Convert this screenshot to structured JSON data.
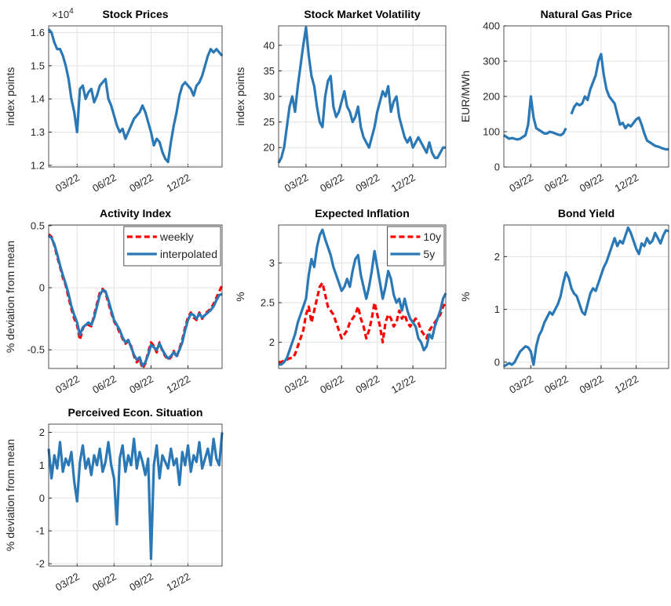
{
  "chart_data": [
    {
      "type": "line",
      "title": "Stock Prices",
      "ylabel": "index points",
      "y_multiplier": {
        "base": "×10",
        "exponent": "4"
      },
      "categories": [
        null,
        null,
        null,
        null,
        null,
        null,
        null,
        null,
        null,
        null,
        "03/22",
        null,
        null,
        null,
        null,
        null,
        null,
        null,
        null,
        null,
        null,
        null,
        null,
        "06/22",
        null,
        null,
        null,
        null,
        null,
        null,
        null,
        null,
        null,
        null,
        null,
        null,
        "09/22",
        null,
        null,
        null,
        null,
        null,
        null,
        null,
        null,
        null,
        null,
        null,
        null,
        "12/22",
        null,
        null,
        null,
        null,
        null,
        null,
        null,
        null,
        null,
        null,
        null,
        null
      ],
      "series": [
        {
          "color": "#2a78b5",
          "values": [
            1.61,
            1.6,
            1.57,
            1.55,
            1.55,
            1.53,
            1.5,
            1.46,
            1.4,
            1.36,
            1.3,
            1.43,
            1.44,
            1.4,
            1.42,
            1.43,
            1.39,
            1.41,
            1.44,
            1.45,
            1.46,
            1.4,
            1.38,
            1.35,
            1.32,
            1.3,
            1.31,
            1.28,
            1.3,
            1.32,
            1.34,
            1.35,
            1.36,
            1.38,
            1.36,
            1.33,
            1.3,
            1.26,
            1.28,
            1.27,
            1.24,
            1.22,
            1.21,
            1.27,
            1.32,
            1.36,
            1.41,
            1.44,
            1.45,
            1.44,
            1.43,
            1.41,
            1.44,
            1.45,
            1.47,
            1.5,
            1.53,
            1.55,
            1.54,
            1.55,
            1.54,
            1.53
          ]
        }
      ],
      "ylim": [
        1.195,
        1.62
      ],
      "yticks": [
        1.2,
        1.3,
        1.4,
        1.5,
        1.6
      ],
      "grid": true
    },
    {
      "type": "line",
      "title": "Stock Market Volatility",
      "ylabel": "index points",
      "categories": [
        null,
        null,
        null,
        null,
        null,
        null,
        null,
        null,
        null,
        null,
        "03/22",
        null,
        null,
        null,
        null,
        null,
        null,
        null,
        null,
        null,
        null,
        null,
        null,
        "06/22",
        null,
        null,
        null,
        null,
        null,
        null,
        null,
        null,
        null,
        null,
        null,
        null,
        "09/22",
        null,
        null,
        null,
        null,
        null,
        null,
        null,
        null,
        null,
        null,
        null,
        null,
        "12/22",
        null,
        null,
        null,
        null,
        null,
        null,
        null,
        null,
        null,
        null,
        null,
        null
      ],
      "series": [
        {
          "color": "#2a78b5",
          "values": [
            17,
            18,
            20,
            24,
            28,
            30,
            27,
            32,
            36,
            40,
            43.5,
            38,
            34,
            32,
            28,
            25,
            24,
            30,
            33,
            34,
            28,
            26,
            27,
            29,
            31,
            28,
            27,
            25,
            26,
            28,
            24,
            22,
            21,
            20,
            22,
            24,
            27,
            29,
            31,
            30,
            32,
            27,
            29,
            30,
            26,
            24,
            22,
            21,
            22,
            20,
            21,
            22,
            21,
            20,
            19,
            21,
            19,
            18,
            18,
            19,
            20,
            20
          ]
        }
      ],
      "ylim": [
        16.2,
        43.8
      ],
      "yticks": [
        20,
        25,
        30,
        35,
        40
      ],
      "grid": true
    },
    {
      "type": "line",
      "title": "Natural Gas Price",
      "ylabel": "EUR/MWh",
      "categories": [
        null,
        null,
        null,
        null,
        null,
        null,
        null,
        null,
        null,
        null,
        "03/22",
        null,
        null,
        null,
        null,
        null,
        null,
        null,
        null,
        null,
        null,
        null,
        null,
        "06/22",
        null,
        null,
        null,
        null,
        null,
        null,
        null,
        null,
        null,
        null,
        null,
        null,
        "09/22",
        null,
        null,
        null,
        null,
        null,
        null,
        null,
        null,
        null,
        null,
        null,
        null,
        "12/22",
        null,
        null,
        null,
        null,
        null,
        null,
        null,
        null,
        null,
        null,
        null,
        null
      ],
      "series": [
        {
          "color": "#2a78b5",
          "values": [
            90,
            85,
            80,
            82,
            80,
            78,
            80,
            85,
            90,
            120,
            200,
            140,
            110,
            105,
            100,
            95,
            95,
            100,
            98,
            95,
            92,
            90,
            95,
            110,
            null,
            150,
            170,
            180,
            175,
            180,
            200,
            190,
            220,
            240,
            260,
            300,
            320,
            260,
            220,
            200,
            190,
            180,
            150,
            120,
            125,
            110,
            120,
            115,
            125,
            135,
            140,
            120,
            95,
            75,
            70,
            65,
            60,
            58,
            55,
            52,
            50,
            50
          ]
        }
      ],
      "ylim": [
        0,
        400
      ],
      "yticks": [
        0,
        100,
        200,
        300,
        400
      ],
      "grid": true
    },
    {
      "type": "line",
      "title": "Activity Index",
      "ylabel": "% deviation from mean",
      "legend": "northeast",
      "categories": [
        null,
        null,
        null,
        null,
        null,
        null,
        null,
        null,
        null,
        null,
        "03/22",
        null,
        null,
        null,
        null,
        null,
        null,
        null,
        null,
        null,
        null,
        null,
        null,
        "06/22",
        null,
        null,
        null,
        null,
        null,
        null,
        null,
        null,
        null,
        null,
        null,
        null,
        "09/22",
        null,
        null,
        null,
        null,
        null,
        null,
        null,
        null,
        null,
        null,
        null,
        null,
        "12/22",
        null,
        null,
        null,
        null,
        null,
        null,
        null,
        null,
        null,
        null,
        null,
        null
      ],
      "series": [
        {
          "name": "weekly",
          "color": "#ff0000",
          "linestyle": "dashed",
          "values": [
            0.43,
            0.41,
            0.34,
            0.25,
            0.17,
            0.08,
            0.02,
            -0.08,
            -0.17,
            -0.25,
            -0.3,
            -0.42,
            -0.33,
            -0.29,
            -0.3,
            -0.31,
            -0.22,
            -0.13,
            -0.04,
            -0.01,
            -0.04,
            -0.12,
            -0.2,
            -0.27,
            -0.31,
            -0.36,
            -0.41,
            -0.45,
            -0.43,
            -0.47,
            -0.55,
            -0.6,
            -0.57,
            -0.65,
            -0.61,
            -0.52,
            -0.44,
            -0.47,
            -0.52,
            -0.44,
            -0.51,
            -0.55,
            -0.58,
            -0.56,
            -0.51,
            -0.56,
            -0.49,
            -0.42,
            -0.32,
            -0.24,
            -0.2,
            -0.24,
            -0.26,
            -0.2,
            -0.25,
            -0.21,
            -0.19,
            -0.17,
            -0.13,
            -0.08,
            -0.03,
            0.02
          ]
        },
        {
          "name": "interpolated",
          "color": "#2a78b5",
          "linestyle": "solid",
          "values": [
            0.42,
            0.4,
            0.35,
            0.27,
            0.18,
            0.1,
            0.03,
            -0.05,
            -0.15,
            -0.22,
            -0.28,
            -0.38,
            -0.32,
            -0.3,
            -0.28,
            -0.3,
            -0.24,
            -0.15,
            -0.06,
            -0.02,
            -0.03,
            -0.1,
            -0.18,
            -0.26,
            -0.3,
            -0.34,
            -0.4,
            -0.44,
            -0.42,
            -0.48,
            -0.54,
            -0.58,
            -0.56,
            -0.63,
            -0.6,
            -0.54,
            -0.46,
            -0.48,
            -0.5,
            -0.45,
            -0.5,
            -0.54,
            -0.57,
            -0.55,
            -0.52,
            -0.55,
            -0.5,
            -0.44,
            -0.34,
            -0.26,
            -0.21,
            -0.22,
            -0.25,
            -0.21,
            -0.24,
            -0.22,
            -0.2,
            -0.18,
            -0.15,
            -0.1,
            -0.06,
            -0.05
          ]
        }
      ],
      "ylim": [
        -0.65,
        0.505
      ],
      "yticks": [
        -0.5,
        0,
        0.5
      ],
      "grid": true
    },
    {
      "type": "line",
      "title": "Expected Inflation",
      "ylabel": "%",
      "legend": "northeast",
      "categories": [
        null,
        null,
        null,
        null,
        null,
        null,
        null,
        null,
        null,
        null,
        "03/22",
        null,
        null,
        null,
        null,
        null,
        null,
        null,
        null,
        null,
        null,
        null,
        null,
        "06/22",
        null,
        null,
        null,
        null,
        null,
        null,
        null,
        null,
        null,
        null,
        null,
        null,
        "09/22",
        null,
        null,
        null,
        null,
        null,
        null,
        null,
        null,
        null,
        null,
        null,
        null,
        "12/22",
        null,
        null,
        null,
        null,
        null,
        null,
        null,
        null,
        null,
        null,
        null,
        null
      ],
      "series": [
        {
          "name": "10y",
          "color": "#ff0000",
          "linestyle": "dashed",
          "values": [
            1.75,
            1.75,
            1.77,
            1.78,
            1.8,
            1.8,
            1.85,
            1.95,
            2.05,
            2.15,
            2.35,
            2.45,
            2.25,
            2.4,
            2.55,
            2.7,
            2.75,
            2.6,
            2.45,
            2.4,
            2.35,
            2.25,
            2.15,
            2.05,
            2.1,
            2.15,
            2.25,
            2.3,
            2.35,
            2.45,
            2.3,
            2.2,
            2.05,
            2.15,
            2.3,
            2.5,
            2.35,
            2.2,
            2.0,
            2.25,
            2.35,
            2.3,
            2.2,
            2.25,
            2.4,
            2.3,
            2.35,
            2.25,
            2.2,
            2.25,
            2.3,
            2.25,
            2.15,
            2.1,
            2.05,
            2.15,
            2.2,
            2.25,
            2.3,
            2.35,
            2.45,
            2.5
          ]
        },
        {
          "name": "5y",
          "color": "#2a78b5",
          "linestyle": "solid",
          "values": [
            1.72,
            1.72,
            1.75,
            1.8,
            1.9,
            2.0,
            2.1,
            2.25,
            2.35,
            2.45,
            2.55,
            2.85,
            3.05,
            2.95,
            3.2,
            3.35,
            3.42,
            3.3,
            3.2,
            3.1,
            2.95,
            2.85,
            2.75,
            2.65,
            2.7,
            2.8,
            2.7,
            2.9,
            3.05,
            3.1,
            2.85,
            2.7,
            2.55,
            2.7,
            2.9,
            3.15,
            2.95,
            2.75,
            2.55,
            2.7,
            2.9,
            2.8,
            2.6,
            2.5,
            2.55,
            2.4,
            2.55,
            2.4,
            2.3,
            2.25,
            2.2,
            2.05,
            2.0,
            1.9,
            1.95,
            2.1,
            2.05,
            2.2,
            2.3,
            2.4,
            2.55,
            2.62
          ]
        }
      ],
      "ylim": [
        1.67,
        3.48
      ],
      "yticks": [
        2,
        2.5,
        3
      ],
      "grid": true
    },
    {
      "type": "line",
      "title": "Bond Yield",
      "ylabel": "%",
      "categories": [
        null,
        null,
        null,
        null,
        null,
        null,
        null,
        null,
        null,
        null,
        "03/22",
        null,
        null,
        null,
        null,
        null,
        null,
        null,
        null,
        null,
        null,
        null,
        null,
        "06/22",
        null,
        null,
        null,
        null,
        null,
        null,
        null,
        null,
        null,
        null,
        null,
        null,
        "09/22",
        null,
        null,
        null,
        null,
        null,
        null,
        null,
        null,
        null,
        null,
        null,
        null,
        "12/22",
        null,
        null,
        null,
        null,
        null,
        null,
        null,
        null,
        null,
        null,
        null,
        null
      ],
      "series": [
        {
          "color": "#2a78b5",
          "values": [
            -0.08,
            -0.05,
            -0.02,
            -0.05,
            0.0,
            0.1,
            0.2,
            0.25,
            0.3,
            0.28,
            0.2,
            -0.05,
            0.3,
            0.5,
            0.6,
            0.75,
            0.85,
            0.95,
            0.9,
            1.0,
            1.1,
            1.25,
            1.5,
            1.7,
            1.6,
            1.4,
            1.3,
            1.25,
            1.1,
            0.95,
            0.9,
            1.1,
            1.3,
            1.4,
            1.35,
            1.5,
            1.65,
            1.8,
            1.9,
            2.05,
            2.2,
            2.35,
            2.2,
            2.3,
            2.25,
            2.4,
            2.55,
            2.45,
            2.3,
            2.15,
            2.05,
            2.25,
            2.2,
            2.35,
            2.25,
            2.3,
            2.45,
            2.35,
            2.25,
            2.4,
            2.5,
            2.48
          ]
        }
      ],
      "ylim": [
        -0.12,
        2.6
      ],
      "yticks": [
        0,
        1,
        2
      ],
      "grid": true
    },
    {
      "type": "line",
      "title": "Perceived Econ. Situation",
      "ylabel": "% deviation from mean",
      "categories": [
        null,
        null,
        null,
        null,
        null,
        null,
        null,
        null,
        null,
        null,
        "03/22",
        null,
        null,
        null,
        null,
        null,
        null,
        null,
        null,
        null,
        null,
        null,
        null,
        "06/22",
        null,
        null,
        null,
        null,
        null,
        null,
        null,
        null,
        null,
        null,
        null,
        null,
        "09/22",
        null,
        null,
        null,
        null,
        null,
        null,
        null,
        null,
        null,
        null,
        null,
        null,
        "12/22",
        null,
        null,
        null,
        null,
        null,
        null,
        null,
        null,
        null,
        null,
        null,
        null
      ],
      "series": [
        {
          "color": "#2a78b5",
          "values": [
            1.5,
            0.6,
            1.3,
            0.9,
            1.7,
            0.8,
            1.2,
            1.0,
            1.4,
            0.5,
            -0.1,
            1.1,
            1.6,
            0.9,
            1.2,
            0.7,
            1.3,
            1.0,
            1.5,
            0.8,
            1.1,
            1.7,
            1.0,
            0.6,
            -0.8,
            1.2,
            1.6,
            0.8,
            1.3,
            1.0,
            1.8,
            0.9,
            1.4,
            1.1,
            0.7,
            1.2,
            -1.85,
            1.0,
            1.6,
            0.6,
            1.3,
            1.1,
            0.9,
            1.5,
            1.0,
            1.2,
            0.4,
            1.4,
            1.0,
            1.6,
            0.8,
            1.3,
            1.1,
            1.7,
            0.9,
            1.2,
            1.5,
            1.0,
            1.8,
            1.2,
            1.0,
            2.0
          ]
        }
      ],
      "ylim": [
        -2.07,
        2.25
      ],
      "yticks": [
        -2,
        -1,
        0,
        1,
        2
      ],
      "grid": true
    }
  ]
}
